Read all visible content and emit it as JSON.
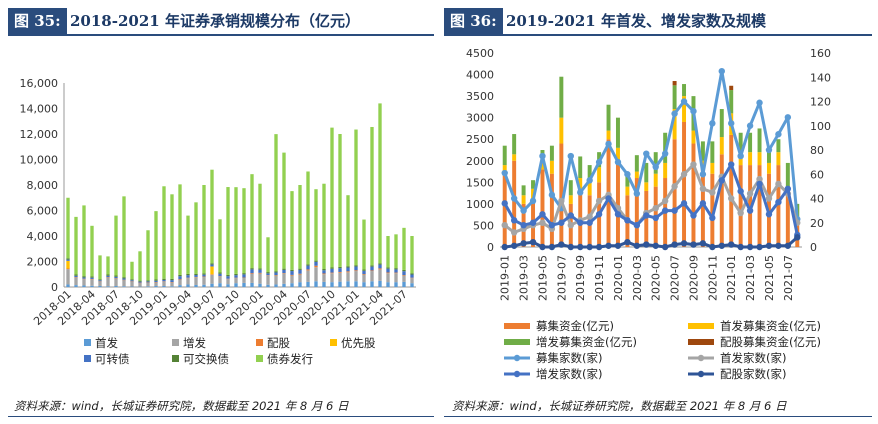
{
  "left": {
    "tag": "图 35:",
    "title": "2018-2021 年证券承销规模分布（亿元）",
    "source": "资料来源：wind，长城证券研究院，数据截至 2021 年 8 月 6 日"
  },
  "right": {
    "tag": "图 36:",
    "title": "2019-2021 年首发、增发家数及规模",
    "source": "资料来源：wind，长城证券研究院，数据截至 2021 年 8 月 6 日"
  },
  "chart_data": [
    {
      "type": "bar",
      "stacked": true,
      "title": "2018-2021 年证券承销规模分布（亿元）",
      "ylim": [
        0,
        16000
      ],
      "yticks": [
        "0",
        "2,000",
        "4,000",
        "6,000",
        "8,000",
        "10,000",
        "12,000",
        "14,000",
        "16,000"
      ],
      "x_tick_labels": [
        "2018-01",
        "2018-04",
        "2018-07",
        "2018-10",
        "2019-01",
        "2019-04",
        "2019-07",
        "2019-10",
        "2020-01",
        "2020-04",
        "2020-07",
        "2020-10",
        "2021-01",
        "2021-04",
        "2021-07"
      ],
      "categories": [
        "2018-01",
        "2018-02",
        "2018-03",
        "2018-04",
        "2018-05",
        "2018-06",
        "2018-07",
        "2018-08",
        "2018-09",
        "2018-10",
        "2018-11",
        "2018-12",
        "2019-01",
        "2019-02",
        "2019-03",
        "2019-04",
        "2019-05",
        "2019-06",
        "2019-07",
        "2019-08",
        "2019-09",
        "2019-10",
        "2019-11",
        "2019-12",
        "2020-01",
        "2020-02",
        "2020-03",
        "2020-04",
        "2020-05",
        "2020-06",
        "2020-07",
        "2020-08",
        "2020-09",
        "2020-10",
        "2020-11",
        "2020-12",
        "2021-01",
        "2021-02",
        "2021-03",
        "2021-04",
        "2021-05",
        "2021-06",
        "2021-07",
        "2021-08"
      ],
      "series": [
        {
          "name": "首发",
          "color": "#5b9bd5",
          "values": [
            200,
            150,
            120,
            100,
            80,
            60,
            80,
            60,
            40,
            30,
            50,
            80,
            80,
            60,
            150,
            200,
            160,
            180,
            260,
            300,
            220,
            300,
            320,
            320,
            260,
            180,
            200,
            250,
            300,
            380,
            400,
            450,
            400,
            380,
            420,
            450,
            450,
            380,
            450,
            480,
            380,
            380,
            400,
            300
          ]
        },
        {
          "name": "增发",
          "color": "#a5a5a5",
          "values": [
            1200,
            600,
            500,
            500,
            350,
            700,
            600,
            500,
            400,
            300,
            300,
            300,
            350,
            300,
            400,
            500,
            600,
            600,
            700,
            500,
            400,
            400,
            400,
            700,
            800,
            700,
            700,
            800,
            600,
            600,
            900,
            1100,
            600,
            700,
            700,
            700,
            800,
            600,
            800,
            900,
            700,
            700,
            500,
            400
          ]
        },
        {
          "name": "配股",
          "color": "#ed7d31",
          "values": [
            50,
            30,
            30,
            30,
            20,
            20,
            20,
            10,
            10,
            10,
            10,
            10,
            20,
            30,
            50,
            30,
            30,
            40,
            50,
            40,
            30,
            30,
            20,
            60,
            50,
            40,
            40,
            40,
            50,
            60,
            80,
            120,
            60,
            50,
            60,
            80,
            60,
            40,
            50,
            80,
            60,
            50,
            40,
            30
          ]
        },
        {
          "name": "优先股",
          "color": "#ffc000",
          "values": [
            600,
            0,
            0,
            0,
            0,
            0,
            0,
            0,
            0,
            0,
            0,
            0,
            0,
            0,
            0,
            0,
            0,
            0,
            600,
            0,
            0,
            0,
            0,
            0,
            0,
            0,
            0,
            0,
            0,
            0,
            0,
            0,
            0,
            0,
            0,
            0,
            0,
            0,
            0,
            0,
            0,
            0,
            0,
            0
          ]
        },
        {
          "name": "可转债",
          "color": "#4472c4",
          "values": [
            100,
            100,
            100,
            100,
            80,
            100,
            100,
            100,
            80,
            80,
            80,
            100,
            100,
            150,
            250,
            200,
            150,
            150,
            150,
            200,
            200,
            200,
            250,
            300,
            250,
            150,
            200,
            250,
            300,
            300,
            300,
            300,
            250,
            300,
            300,
            300,
            300,
            250,
            300,
            300,
            300,
            250,
            300,
            250
          ]
        },
        {
          "name": "可交换债",
          "color": "#548235",
          "values": [
            100,
            100,
            100,
            100,
            80,
            100,
            100,
            100,
            80,
            80,
            80,
            100,
            100,
            100,
            100,
            100,
            100,
            100,
            100,
            100,
            100,
            100,
            100,
            100,
            100,
            100,
            100,
            100,
            100,
            100,
            100,
            100,
            100,
            100,
            100,
            100,
            100,
            100,
            100,
            100,
            100,
            100,
            100,
            100
          ]
        },
        {
          "name": "债券发行",
          "color": "#92d050",
          "values": [
            4750,
            4520,
            5550,
            3970,
            1870,
            1420,
            4700,
            6340,
            1370,
            2300,
            3930,
            5360,
            7250,
            6630,
            7100,
            4570,
            5600,
            6930,
            7340,
            4170,
            6890,
            6800,
            6660,
            7370,
            6640,
            2730,
            10750,
            9100,
            6170,
            6560,
            7280,
            5600,
            6690,
            10970,
            10420,
            5570,
            10640,
            3920,
            10850,
            12540,
            2460,
            2650,
            3300,
            2920
          ]
        }
      ],
      "legend": [
        "首发",
        "增发",
        "配股",
        "优先股",
        "可转债",
        "可交换债",
        "债券发行"
      ],
      "legend_position": "bottom"
    },
    {
      "type": "bar+line",
      "title": "2019-2021 年首发、增发家数及规模",
      "ylim_left": [
        0,
        4500
      ],
      "ylim_right": [
        0,
        160
      ],
      "yticks_left": [
        "0",
        "500",
        "1000",
        "1500",
        "2000",
        "2500",
        "3000",
        "3500",
        "4000",
        "4500"
      ],
      "yticks_right": [
        "0",
        "20",
        "40",
        "60",
        "80",
        "100",
        "120",
        "140",
        "160"
      ],
      "x_tick_labels": [
        "2019-01",
        "2019-03",
        "2019-05",
        "2019-07",
        "2019-09",
        "2019-11",
        "2020-01",
        "2020-03",
        "2020-05",
        "2020-07",
        "2020-09",
        "2020-11",
        "2021-01",
        "2021-03",
        "2021-05",
        "2021-07"
      ],
      "categories": [
        "2019-01",
        "2019-02",
        "2019-03",
        "2019-04",
        "2019-05",
        "2019-06",
        "2019-07",
        "2019-08",
        "2019-09",
        "2019-10",
        "2019-11",
        "2019-12",
        "2020-01",
        "2020-02",
        "2020-03",
        "2020-04",
        "2020-05",
        "2020-06",
        "2020-07",
        "2020-08",
        "2020-09",
        "2020-10",
        "2020-11",
        "2020-12",
        "2021-01",
        "2021-02",
        "2021-03",
        "2021-04",
        "2021-05",
        "2021-06",
        "2021-07",
        "2021-08"
      ],
      "bar_series": [
        {
          "name": "募集资金(亿元)",
          "color": "#ed7d31",
          "values": [
            1700,
            2000,
            1000,
            1050,
            1800,
            1700,
            2400,
            1000,
            1300,
            1200,
            1500,
            2500,
            1950,
            1200,
            1600,
            1300,
            1400,
            1600,
            2500,
            2900,
            2400,
            1800,
            1700,
            2150,
            2600,
            1900,
            1900,
            1900,
            1700,
            1900,
            1200,
            600
          ]
        },
        {
          "name": "首发募集资金(亿元)",
          "color": "#ffc000",
          "values": [
            200,
            150,
            200,
            300,
            250,
            300,
            600,
            200,
            300,
            300,
            350,
            200,
            350,
            200,
            150,
            200,
            300,
            350,
            700,
            600,
            300,
            200,
            250,
            400,
            500,
            250,
            300,
            300,
            250,
            300,
            150,
            100
          ]
        },
        {
          "name": "增发募集资金(亿元)",
          "color": "#70ad47",
          "values": [
            450,
            470,
            230,
            200,
            200,
            350,
            950,
            350,
            500,
            400,
            350,
            600,
            700,
            250,
            380,
            450,
            500,
            700,
            550,
            280,
            800,
            450,
            500,
            650,
            540,
            500,
            450,
            550,
            250,
            300,
            600,
            300
          ]
        },
        {
          "name": "配股募集资金(亿元)",
          "color": "#9e480e",
          "values": [
            0,
            0,
            0,
            0,
            0,
            0,
            0,
            0,
            0,
            0,
            0,
            0,
            0,
            0,
            0,
            0,
            0,
            0,
            100,
            0,
            0,
            0,
            0,
            0,
            100,
            0,
            0,
            0,
            0,
            0,
            0,
            0
          ]
        }
      ],
      "line_series": [
        {
          "name": "募集家数(家)",
          "color": "#5b9bd5",
          "values": [
            61,
            40,
            30,
            38,
            75,
            43,
            32,
            75,
            45,
            55,
            70,
            85,
            70,
            60,
            44,
            77,
            66,
            77,
            110,
            120,
            112,
            60,
            102,
            145,
            102,
            75,
            100,
            119,
            80,
            93,
            107,
            23
          ]
        },
        {
          "name": "首发家数(家)",
          "color": "#a5a5a5",
          "values": [
            18,
            12,
            15,
            18,
            20,
            15,
            38,
            18,
            22,
            25,
            38,
            43,
            32,
            22,
            18,
            28,
            32,
            38,
            50,
            60,
            68,
            48,
            45,
            58,
            40,
            28,
            44,
            56,
            40,
            52,
            44,
            20
          ]
        },
        {
          "name": "增发家数(家)",
          "color": "#4472c4",
          "values": [
            36,
            22,
            18,
            20,
            27,
            18,
            20,
            26,
            20,
            20,
            27,
            40,
            27,
            22,
            18,
            26,
            24,
            30,
            30,
            36,
            26,
            36,
            24,
            55,
            68,
            46,
            30,
            52,
            27,
            37,
            48,
            10
          ]
        },
        {
          "name": "配股家数(家)",
          "color": "#2f5597",
          "values": [
            0,
            1,
            3,
            4,
            0,
            0,
            2,
            0,
            0,
            0,
            0,
            1,
            1,
            4,
            1,
            2,
            1,
            0,
            2,
            3,
            2,
            3,
            0,
            1,
            2,
            0,
            0,
            0,
            1,
            1,
            1,
            8
          ]
        }
      ],
      "legend": [
        "募集资金(亿元)",
        "首发募集资金(亿元)",
        "增发募集资金(亿元)",
        "配股募集资金(亿元)",
        "募集家数(家)",
        "首发家数(家)",
        "增发家数(家)",
        "配股家数(家)"
      ],
      "legend_position": "bottom"
    }
  ]
}
